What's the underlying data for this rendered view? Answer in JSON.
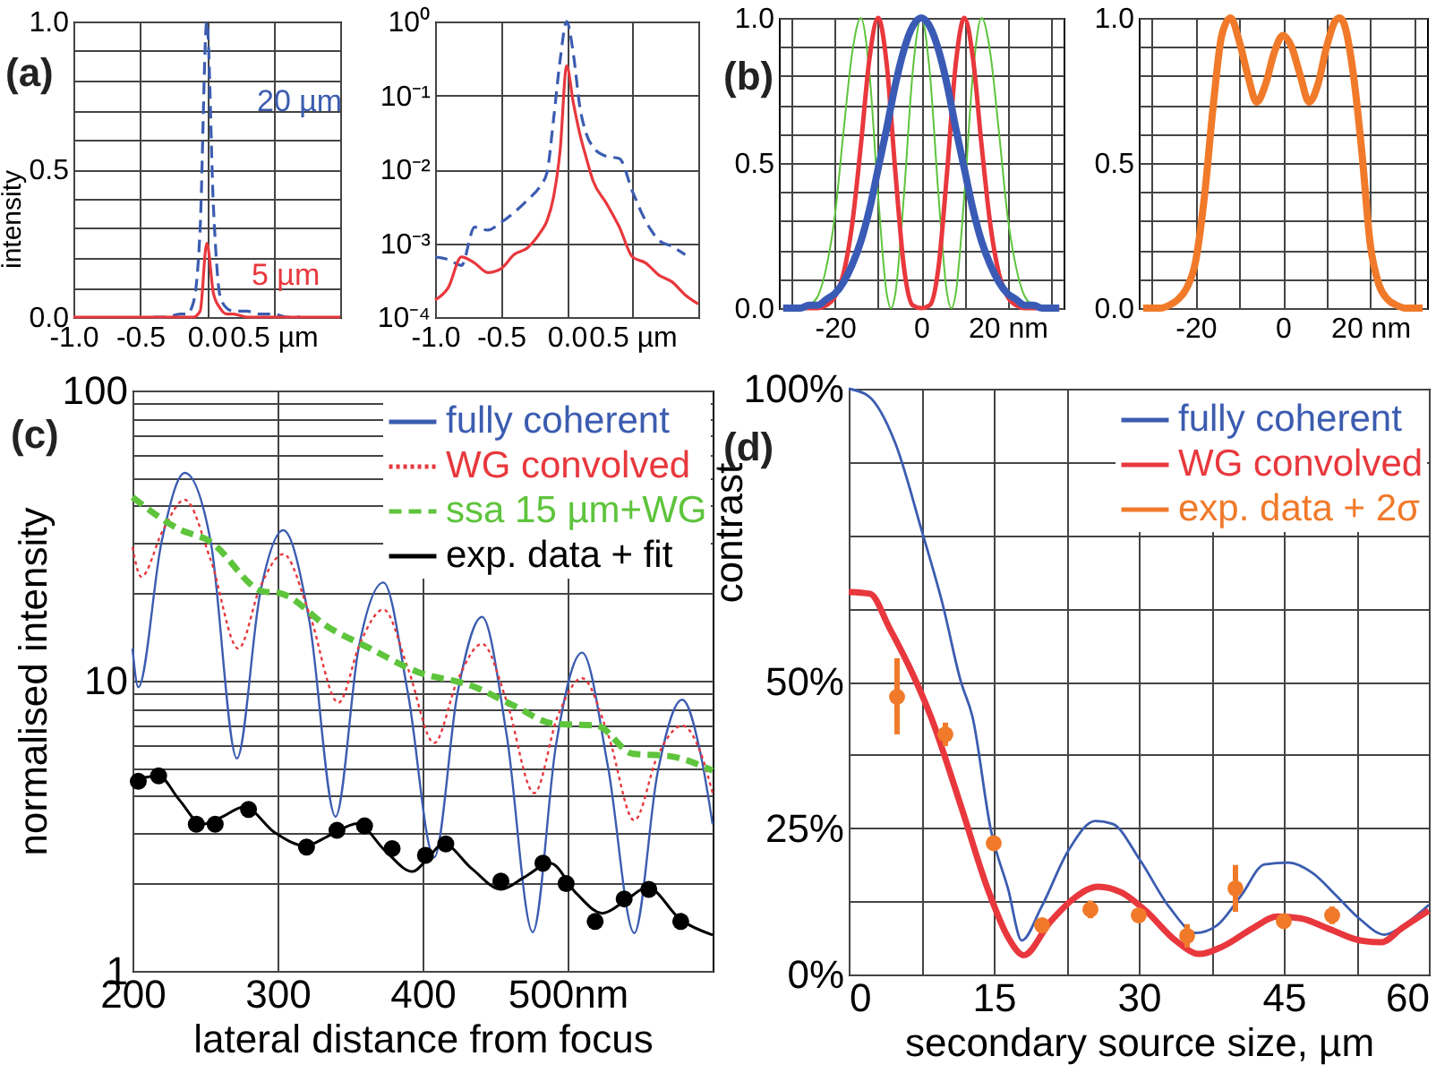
{
  "chart_data": [
    {
      "type": "line",
      "title": "(a)",
      "ylabel": "intensity",
      "x": [
        -1,
        -0.9,
        -0.8,
        -0.7,
        -0.6,
        -0.5,
        -0.4,
        -0.3,
        -0.2,
        -0.15,
        -0.1,
        -0.05,
        0,
        0.05,
        0.1,
        0.15,
        0.2,
        0.3,
        0.4,
        0.5,
        0.6,
        0.7,
        0.8,
        0.9,
        1
      ],
      "series": [
        {
          "name": "20 µm",
          "color": "#3b5cb0",
          "line_style": "dashed",
          "values": [
            null,
            null,
            null,
            null,
            null,
            null,
            0,
            0,
            0.01,
            0.01,
            0.05,
            0.3,
            1,
            0.37,
            0.07,
            0.03,
            0.02,
            0.02,
            0.01,
            0.01,
            0,
            0,
            null,
            null,
            null
          ]
        },
        {
          "name": "5 µm",
          "color": "#e8383d",
          "values": [
            0,
            0,
            0,
            0,
            0,
            0,
            0,
            0,
            0,
            0,
            0,
            0.02,
            0.25,
            0.08,
            0.03,
            0.01,
            0.01,
            0,
            0,
            0,
            0,
            0,
            0,
            0,
            0
          ]
        }
      ],
      "xlim": [
        -1,
        1
      ],
      "xticks": [
        {
          "value": -1,
          "label": "-1.0"
        },
        {
          "value": -0.5,
          "label": "-0.5"
        },
        {
          "value": 0,
          "label": "0.0"
        },
        {
          "value": 0.5,
          "label": "0.5 µm"
        },
        {
          "value": 1,
          "label": null
        }
      ],
      "ylim": [
        0,
        1
      ],
      "yticks": [
        {
          "value": 0,
          "label": "0.0"
        },
        {
          "value": 0.1,
          "label": null
        },
        {
          "value": 0.2,
          "label": null
        },
        {
          "value": 0.3,
          "label": null
        },
        {
          "value": 0.4,
          "label": null
        },
        {
          "value": 0.5,
          "label": "0.5"
        },
        {
          "value": 0.6,
          "label": null
        },
        {
          "value": 0.7,
          "label": null
        },
        {
          "value": 0.8,
          "label": null
        },
        {
          "value": 0.9,
          "label": null
        },
        {
          "value": 1,
          "label": "1.0"
        }
      ],
      "grid": true
    },
    {
      "type": "line",
      "log": true,
      "x": [
        -1,
        -0.9,
        -0.8,
        -0.7,
        -0.6,
        -0.5,
        -0.4,
        -0.3,
        -0.2,
        -0.15,
        -0.1,
        -0.05,
        0,
        0.05,
        0.1,
        0.15,
        0.2,
        0.3,
        0.4,
        0.5,
        0.6,
        0.7,
        0.8,
        0.9,
        1
      ],
      "series": [
        {
          "color": "#3b5cb0",
          "line_style": "dashed",
          "values": [
            0.00065,
            0.0006,
            0.0005,
            0.00165,
            0.0015,
            0.0019,
            0.0026,
            0.0038,
            0.006,
            0.009,
            0.047,
            0.3,
            1,
            0.37,
            0.07,
            0.03,
            0.02,
            0.015,
            0.014,
            0.005,
            0.002,
            0.0011,
            0.0009,
            0.0007,
            null
          ]
        },
        {
          "color": "#e8383d",
          "values": [
            0.00017,
            0.00025,
            0.00065,
            0.00054,
            0.0004,
            0.00045,
            0.0007,
            0.00086,
            0.0014,
            0.002,
            0.0042,
            0.018,
            0.25,
            0.08,
            0.03,
            0.014,
            0.007,
            0.0035,
            0.00165,
            0.00065,
            0.00054,
            0.00037,
            0.0003,
            0.0002,
            0.00015
          ]
        }
      ],
      "xlim": [
        -1,
        1
      ],
      "xticks": [
        {
          "value": -1,
          "label": "-1.0"
        },
        {
          "value": -0.5,
          "label": "-0.5"
        },
        {
          "value": 0,
          "label": "0.0"
        },
        {
          "value": 0.5,
          "label": "0.5 µm"
        },
        {
          "value": 1,
          "label": null
        }
      ],
      "ylim": [
        0.0001,
        1
      ],
      "yticks": [
        {
          "value": 0.0001,
          "label": "10⁻⁴"
        },
        {
          "value": 0.001,
          "label": "10⁻³"
        },
        {
          "value": 0.01,
          "label": "10⁻²"
        },
        {
          "value": 0.1,
          "label": "10⁻¹"
        },
        {
          "value": 1,
          "label": "10⁰"
        }
      ],
      "grid": true
    },
    {
      "type": "line",
      "title": "(b)",
      "x": [
        -32,
        -30,
        -28,
        -26,
        -24,
        -22,
        -20,
        -18,
        -16,
        -14,
        -12,
        -10,
        -8,
        -6,
        -4,
        -2,
        0,
        2,
        4,
        6,
        8,
        10,
        12,
        14,
        16,
        18,
        20,
        22,
        24,
        26,
        28,
        30,
        32
      ],
      "series": [
        {
          "color": "#5ec43c",
          "x": [
            -32,
            -28,
            -26,
            -24,
            -22,
            -20,
            -18,
            -16,
            -14,
            -12,
            -10,
            -8,
            -7,
            -6,
            -4,
            -2,
            0,
            2,
            4,
            6,
            7,
            8,
            10,
            12,
            14,
            16,
            18,
            20,
            22,
            24,
            26,
            28,
            32
          ],
          "values": [
            0,
            0,
            0.01,
            0.04,
            0.14,
            0.32,
            0.61,
            0.88,
            1,
            0.81,
            0.39,
            0.05,
            0,
            0.05,
            0.39,
            0.81,
            1,
            0.81,
            0.39,
            0.05,
            0,
            0.05,
            0.39,
            0.81,
            1,
            0.88,
            0.61,
            0.32,
            0.14,
            0.04,
            0.01,
            0,
            0
          ]
        },
        {
          "color": "#e8383d",
          "values": [
            0,
            0,
            0,
            0,
            0,
            0.01,
            0.04,
            0.12,
            0.29,
            0.56,
            0.86,
            1,
            0.84,
            0.47,
            0.14,
            0.01,
            0,
            0.01,
            0.14,
            0.47,
            0.84,
            1,
            0.86,
            0.56,
            0.29,
            0.12,
            0.04,
            0.01,
            0,
            0,
            0,
            0,
            0
          ]
        },
        {
          "color": "#3a5bb5",
          "values": [
            0,
            0,
            0,
            0.01,
            0.01,
            0.03,
            0.05,
            0.09,
            0.15,
            0.23,
            0.34,
            0.48,
            0.62,
            0.77,
            0.89,
            0.97,
            1,
            0.97,
            0.89,
            0.77,
            0.62,
            0.48,
            0.34,
            0.23,
            0.15,
            0.09,
            0.05,
            0.03,
            0.01,
            0.01,
            0,
            0,
            0
          ]
        }
      ],
      "xlim": [
        -33,
        33
      ],
      "xticks": [
        {
          "value": -30,
          "label": null
        },
        -20,
        {
          "value": -10,
          "label": null
        },
        0,
        {
          "value": 10,
          "label": null
        },
        {
          "value": 20,
          "label": "20 nm"
        },
        {
          "value": 30,
          "label": null
        }
      ],
      "ylim": [
        0,
        1
      ],
      "yticks": [
        {
          "value": 0,
          "label": "0.0"
        },
        {
          "value": 0.1,
          "label": null
        },
        {
          "value": 0.2,
          "label": null
        },
        {
          "value": 0.3,
          "label": null
        },
        {
          "value": 0.4,
          "label": null
        },
        {
          "value": 0.5,
          "label": "0.5"
        },
        {
          "value": 0.6,
          "label": null
        },
        {
          "value": 0.7,
          "label": null
        },
        {
          "value": 0.8,
          "label": null
        },
        {
          "value": 0.9,
          "label": null
        },
        {
          "value": 1,
          "label": "1.0"
        }
      ],
      "grid": true
    },
    {
      "type": "line",
      "x": [
        -32,
        -30,
        -28,
        -26,
        -24,
        -22,
        -20,
        -18,
        -16,
        -14,
        -12,
        -10,
        -8,
        -6,
        -4,
        -2,
        0,
        2,
        4,
        6,
        8,
        10,
        12,
        13,
        14,
        16,
        18,
        20,
        22,
        24,
        26,
        28,
        30,
        32
      ],
      "series": [
        {
          "color": "#f07a2a",
          "values": [
            0,
            0,
            0,
            0.01,
            0.03,
            0.07,
            0.16,
            0.38,
            0.69,
            0.94,
            1,
            0.92,
            0.8,
            0.71,
            0.77,
            0.88,
            0.94,
            0.9,
            0.8,
            0.71,
            0.77,
            0.9,
            0.99,
            1,
            0.98,
            0.82,
            0.55,
            0.22,
            0.08,
            0.03,
            0.01,
            0,
            0,
            0
          ]
        }
      ],
      "xlim": [
        -33,
        33
      ],
      "xticks": [
        {
          "value": -30,
          "label": null
        },
        -20,
        {
          "value": -10,
          "label": null
        },
        0,
        {
          "value": 10,
          "label": null
        },
        {
          "value": 20,
          "label": "20 nm"
        },
        {
          "value": 30,
          "label": null
        }
      ],
      "ylim": [
        0,
        1
      ],
      "yticks": [
        {
          "value": 0,
          "label": "0.0"
        },
        {
          "value": 0.1,
          "label": null
        },
        {
          "value": 0.2,
          "label": null
        },
        {
          "value": 0.3,
          "label": null
        },
        {
          "value": 0.4,
          "label": null
        },
        {
          "value": 0.5,
          "label": "0.5"
        },
        {
          "value": 0.6,
          "label": null
        },
        {
          "value": 0.7,
          "label": null
        },
        {
          "value": 0.8,
          "label": null
        },
        {
          "value": 0.9,
          "label": null
        },
        {
          "value": 1,
          "label": "1.0"
        }
      ],
      "grid": true
    },
    {
      "type": "line",
      "title": "(c)",
      "xlabel": "lateral distance from focus",
      "ylabel": "normalised intensity",
      "log": true,
      "series": [
        {
          "name": "fully coherent",
          "color": "#3b5cb0",
          "x": [
            200,
            204,
            220,
            236,
            254,
            272,
            288,
            304,
            322,
            340,
            356,
            373,
            390,
            408,
            424,
            441,
            458,
            476,
            492,
            510,
            528,
            546,
            562,
            579,
            592,
            600
          ],
          "values": [
            12.9,
            9.5,
            30,
            52,
            30,
            5.4,
            20,
            33,
            16,
            3.4,
            13,
            21.8,
            9,
            2.46,
            9,
            16.6,
            6.5,
            1.36,
            6,
            12.5,
            5,
            1.35,
            4.8,
            8.6,
            5.5,
            3.2
          ]
        },
        {
          "name": "WG convolved",
          "color": "#e8383d",
          "line_style": "dotted",
          "x": [
            200,
            206,
            221,
            236,
            254,
            273,
            288,
            304,
            322,
            342,
            357,
            373,
            390,
            408,
            424,
            441,
            458,
            477,
            493,
            510,
            528,
            546,
            562,
            579,
            592,
            600
          ],
          "values": [
            28.9,
            22.8,
            33,
            42,
            26,
            12.9,
            21,
            27.3,
            17,
            8.4,
            13.5,
            17.6,
            11,
            6.1,
            10,
            13.4,
            8.5,
            4.1,
            7.5,
            10.2,
            6.5,
            3.3,
            5.5,
            7,
            5.6,
            4.1
          ]
        },
        {
          "name": "ssa 15 µm+WG",
          "color": "#5ec43c",
          "line_style": "dashed",
          "x": [
            200,
            232,
            253,
            290,
            302,
            335,
            364,
            397,
            434,
            463,
            491,
            520,
            545,
            570,
            600
          ],
          "values": [
            42.9,
            33.3,
            30.3,
            20.3,
            20,
            15.3,
            12.9,
            10.7,
            9.6,
            8.2,
            7.1,
            7,
            5.6,
            5.5,
            4.9
          ]
        },
        {
          "name": "exp. data + fit",
          "color": "#000000",
          "x": [
            200,
            218,
            232,
            248,
            262,
            277,
            298,
            319,
            337,
            355,
            374,
            393,
            404,
            414,
            434,
            454,
            470,
            488,
            506,
            524,
            540,
            555,
            578,
            600
          ],
          "values": [
            4.55,
            4.7,
            3.9,
            3.2,
            3.4,
            3.68,
            3,
            2.7,
            2.95,
            3.22,
            2.6,
            2.2,
            2.45,
            2.75,
            2.25,
            1.91,
            2.1,
            2.35,
            1.85,
            1.58,
            1.75,
            1.94,
            1.5,
            1.33
          ]
        },
        {
          "type": "scatter",
          "marker": "circle",
          "color": "#000000",
          "x": [
            204,
            218,
            244,
            257,
            280,
            320,
            341,
            360,
            379,
            402,
            416,
            454,
            483,
            499,
            519,
            539,
            556,
            578
          ],
          "values": [
            4.5,
            4.7,
            3.2,
            3.2,
            3.6,
            2.67,
            3.05,
            3.16,
            2.64,
            2.5,
            2.74,
            2.04,
            2.35,
            2,
            1.48,
            1.77,
            1.91,
            1.48
          ]
        }
      ],
      "xlim": [
        200,
        600
      ],
      "xticks": [
        200,
        300,
        400,
        {
          "value": 500,
          "label": "500nm"
        }
      ],
      "ylim": [
        1,
        100
      ],
      "yticks": [
        1,
        {
          "value": 2,
          "label": null
        },
        {
          "value": 3,
          "label": null
        },
        {
          "value": 4,
          "label": null
        },
        {
          "value": 5,
          "label": null
        },
        {
          "value": 6,
          "label": null
        },
        {
          "value": 7,
          "label": null
        },
        {
          "value": 8,
          "label": null
        },
        {
          "value": 9,
          "label": null
        },
        10,
        {
          "value": 20,
          "label": null
        },
        {
          "value": 30,
          "label": null
        },
        {
          "value": 40,
          "label": null
        },
        {
          "value": 50,
          "label": null
        },
        {
          "value": 60,
          "label": null
        },
        {
          "value": 70,
          "label": null
        },
        {
          "value": 80,
          "label": null
        },
        {
          "value": 90,
          "label": null
        },
        100
      ],
      "grid": true,
      "legend": "top right"
    },
    {
      "type": "line",
      "title": "(d)",
      "xlabel": "secondary source size, µm",
      "ylabel": "contrast",
      "series": [
        {
          "name": "fully coherent",
          "color": "#3b5cb0",
          "x": [
            0,
            2,
            4.8,
            7.6,
            9.7,
            11.6,
            12.8,
            14.7,
            16.5,
            17.9,
            19.9,
            22.7,
            25.5,
            27.3,
            30.1,
            33.2,
            35.9,
            38.1,
            40.6,
            43,
            45.5,
            48,
            50.4,
            52.9,
            55.4,
            57.8,
            60
          ],
          "values": [
            100,
            98.8,
            90.8,
            75.5,
            63.3,
            50,
            44,
            24.7,
            14.5,
            5.8,
            11.4,
            21.1,
            26.2,
            25.7,
            19.6,
            11.4,
            7.1,
            8.4,
            13.5,
            18.8,
            19.1,
            17.3,
            13.5,
            9.4,
            6.8,
            8.9,
            11.9
          ]
        },
        {
          "name": "WG convolved",
          "color": "#e8383d",
          "x": [
            0,
            2.2,
            4.2,
            6.7,
            8.5,
            11.6,
            14.4,
            16.5,
            18.1,
            20.8,
            23.3,
            25.8,
            28.2,
            30.7,
            33.8,
            36.3,
            38.7,
            41.8,
            44.3,
            46.7,
            49.8,
            52.9,
            55.1,
            57.2,
            60
          ],
          "values": [
            65.3,
            65,
            59.2,
            51,
            44,
            28.8,
            14.5,
            6.3,
            3.3,
            8.9,
            13,
            15,
            14,
            10.9,
            5.8,
            3.5,
            4.8,
            7.9,
            9.9,
            9.6,
            7.7,
            5.8,
            5.5,
            7.9,
            10.9
          ]
        },
        {
          "name": "exp. data + 2σ",
          "type": "scatter",
          "marker": "circle",
          "color": "#f07a2a",
          "x": [
            5,
            10,
            15,
            20,
            25,
            30,
            35,
            40,
            45,
            50
          ],
          "values": [
            47.4,
            41,
            22.4,
            8.4,
            11.1,
            10.1,
            6.6,
            14.7,
            9.1,
            10.1
          ],
          "errors": [
            [
              41,
              54
            ],
            2,
            1,
            1,
            1.5,
            1,
            2,
            4,
            1,
            1.5
          ]
        }
      ],
      "xlim": [
        0,
        60
      ],
      "xticks": [
        0,
        {
          "value": 7.5,
          "label": null
        },
        15,
        {
          "value": 22.5,
          "label": null
        },
        30,
        {
          "value": 37.5,
          "label": null
        },
        45,
        {
          "value": 52.5,
          "label": null
        },
        60
      ],
      "ylim": [
        0,
        100
      ],
      "yticks": [
        {
          "value": 0,
          "label": "0%"
        },
        {
          "value": 12.5,
          "label": null
        },
        {
          "value": 25,
          "label": "25%"
        },
        {
          "value": 37.5,
          "label": null
        },
        {
          "value": 50,
          "label": "50%"
        },
        {
          "value": 62.5,
          "label": null
        },
        {
          "value": 75,
          "label": null
        },
        {
          "value": 87.5,
          "label": null
        },
        {
          "value": 100,
          "label": "100%"
        }
      ],
      "grid": true,
      "legend": "top right"
    }
  ]
}
